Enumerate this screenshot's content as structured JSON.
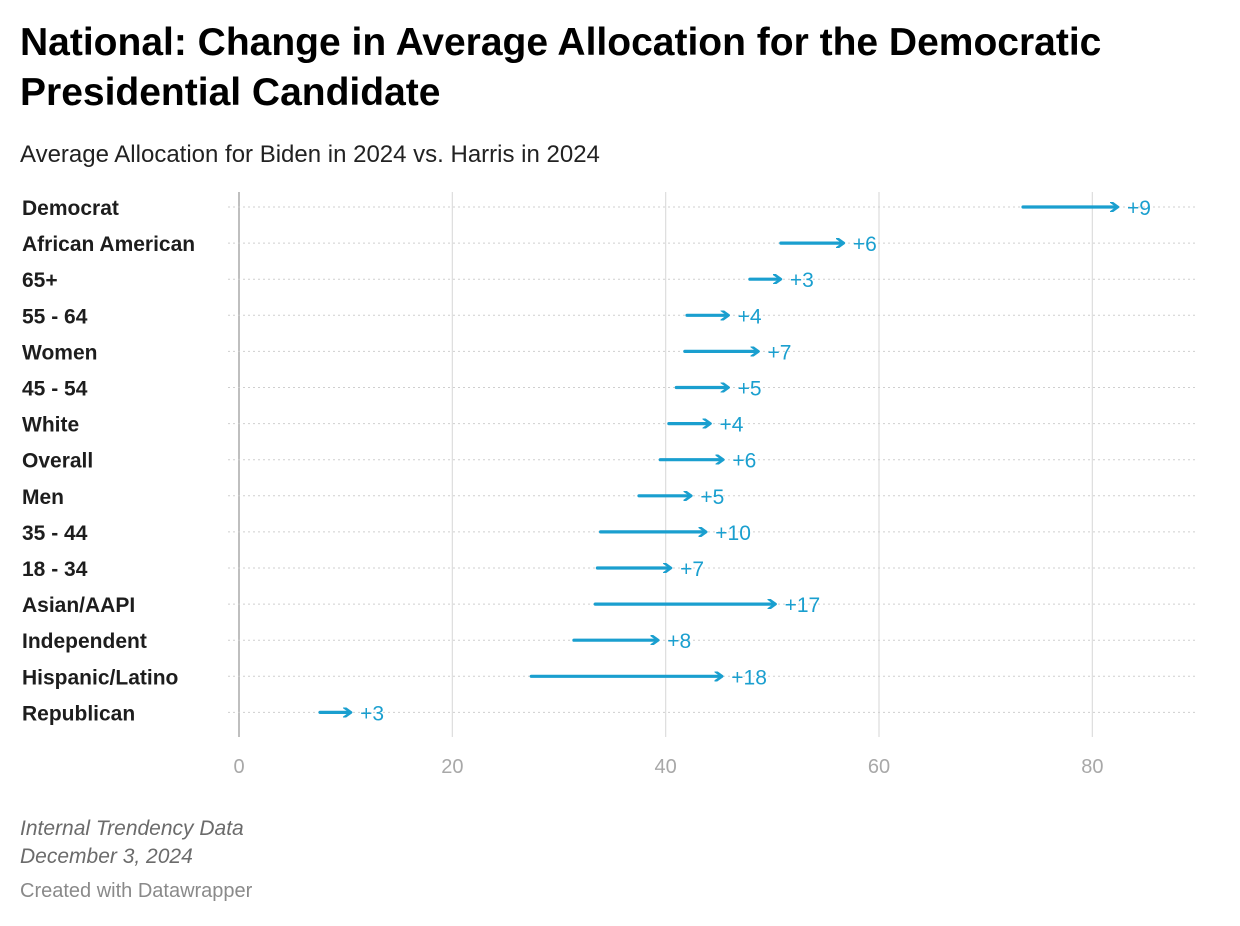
{
  "header": {
    "title": "National: Change in Average Allocation for the Democratic Presidential Candidate",
    "subtitle": "Average Allocation for Biden in 2024 vs. Harris in 2024"
  },
  "footer": {
    "source_line": "Internal Trendency Data",
    "date_line": "December 3, 2024",
    "byline": "Created with Datawrapper"
  },
  "colors": {
    "arrow": "#1a9fcf",
    "gridline": "#dddddd",
    "baseline": "#bfbfbf"
  },
  "chart_data": {
    "type": "arrow",
    "title": "National: Change in Average Allocation for the Democratic Presidential Candidate",
    "subtitle": "Average Allocation for Biden in 2024 vs. Harris in 2024",
    "xlim": [
      0,
      90
    ],
    "xticks": [
      0,
      20,
      40,
      60,
      80
    ],
    "xtick_labels": [
      "0",
      "20",
      "40",
      "60",
      "80"
    ],
    "grid": true,
    "series": [
      {
        "values": [
          73.5,
          50.8,
          47.9,
          42,
          41.8,
          41,
          40.3,
          39.5,
          37.5,
          33.9,
          33.6,
          33.4,
          31.4,
          27.4,
          7.6
        ]
      },
      {
        "values": [
          82.5,
          56.8,
          50.9,
          46,
          48.8,
          46,
          44.3,
          45.5,
          42.5,
          43.9,
          40.6,
          50.4,
          39.4,
          45.4,
          10.6
        ]
      }
    ],
    "rows": [
      {
        "label": "Democrat",
        "value_label": "+9"
      },
      {
        "label": "African American",
        "value_label": "+6"
      },
      {
        "label": "65+",
        "value_label": "+3"
      },
      {
        "label": "55 - 64",
        "value_label": "+4"
      },
      {
        "label": "Women",
        "value_label": "+7"
      },
      {
        "label": "45 - 54",
        "value_label": "+5"
      },
      {
        "label": "White",
        "value_label": "+4"
      },
      {
        "label": "Overall",
        "value_label": "+6"
      },
      {
        "label": "Men",
        "value_label": "+5"
      },
      {
        "label": "35 - 44",
        "value_label": "+10"
      },
      {
        "label": "18 - 34",
        "value_label": "+7"
      },
      {
        "label": "Asian/AAPI",
        "value_label": "+17"
      },
      {
        "label": "Independent",
        "value_label": "+8"
      },
      {
        "label": "Hispanic/Latino",
        "value_label": "+18"
      },
      {
        "label": "Republican",
        "value_label": "+3"
      }
    ]
  }
}
